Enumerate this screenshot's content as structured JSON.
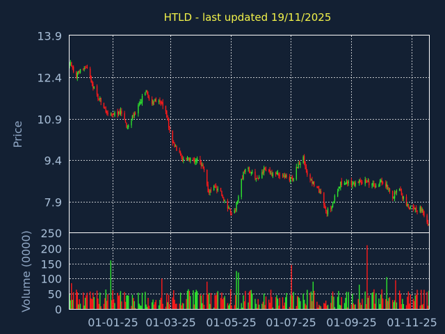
{
  "chart_data": [
    {
      "type": "candlestick",
      "title": "HTLD - last updated 19/11/2025",
      "ylabel": "Price",
      "ylim": [
        6.8,
        13.9
      ],
      "y_ticks": [
        "13.9",
        "12.4",
        "10.9",
        "9.4",
        "7.9"
      ],
      "x_ticks": [
        "01-01-25",
        "01-03-25",
        "01-05-25",
        "01-07-25",
        "01-09-25",
        "01-11-25"
      ],
      "grid": true,
      "colors": {
        "up": "#2ee62e",
        "down": "#ff1a1a"
      },
      "series": [
        {
          "keypoints": [
            [
              "2024-11-20",
              12.85
            ],
            [
              "2024-11-23",
              12.35
            ],
            [
              "2024-11-27",
              12.55
            ],
            [
              "2024-12-02",
              12.7
            ],
            [
              "2024-12-06",
              12.75
            ],
            [
              "2024-12-10",
              12.3
            ],
            [
              "2024-12-15",
              11.8
            ],
            [
              "2024-12-20",
              11.5
            ],
            [
              "2024-12-26",
              11.1
            ],
            [
              "2025-01-03",
              11.05
            ],
            [
              "2025-01-10",
              11.15
            ],
            [
              "2025-01-15",
              10.6
            ],
            [
              "2025-01-20",
              10.9
            ],
            [
              "2025-01-27",
              11.3
            ],
            [
              "2025-02-03",
              11.9
            ],
            [
              "2025-02-10",
              11.5
            ],
            [
              "2025-02-17",
              11.55
            ],
            [
              "2025-02-24",
              11.2
            ],
            [
              "2025-03-01",
              10.2
            ],
            [
              "2025-03-06",
              9.9
            ],
            [
              "2025-03-13",
              9.4
            ],
            [
              "2025-03-20",
              9.45
            ],
            [
              "2025-03-31",
              9.35
            ],
            [
              "2025-04-05",
              8.9
            ],
            [
              "2025-04-08",
              8.3
            ],
            [
              "2025-04-15",
              8.4
            ],
            [
              "2025-04-22",
              8.2
            ],
            [
              "2025-04-28",
              7.7
            ],
            [
              "2025-05-02",
              7.4
            ],
            [
              "2025-05-06",
              7.65
            ],
            [
              "2025-05-12",
              8.7
            ],
            [
              "2025-05-16",
              9.1
            ],
            [
              "2025-05-22",
              9.0
            ],
            [
              "2025-05-28",
              8.75
            ],
            [
              "2025-06-04",
              9.05
            ],
            [
              "2025-06-11",
              8.9
            ],
            [
              "2025-06-18",
              8.95
            ],
            [
              "2025-06-26",
              8.8
            ],
            [
              "2025-07-03",
              8.7
            ],
            [
              "2025-07-08",
              9.2
            ],
            [
              "2025-07-14",
              9.45
            ],
            [
              "2025-07-18",
              8.9
            ],
            [
              "2025-07-24",
              8.6
            ],
            [
              "2025-07-31",
              8.25
            ],
            [
              "2025-08-06",
              7.55
            ],
            [
              "2025-08-11",
              7.6
            ],
            [
              "2025-08-16",
              8.2
            ],
            [
              "2025-08-21",
              8.6
            ],
            [
              "2025-08-27",
              8.6
            ],
            [
              "2025-09-04",
              8.55
            ],
            [
              "2025-09-11",
              8.65
            ],
            [
              "2025-09-18",
              8.6
            ],
            [
              "2025-09-25",
              8.5
            ],
            [
              "2025-10-01",
              8.6
            ],
            [
              "2025-10-08",
              8.45
            ],
            [
              "2025-10-13",
              8.05
            ],
            [
              "2025-10-18",
              8.45
            ],
            [
              "2025-10-23",
              8.1
            ],
            [
              "2025-10-28",
              7.75
            ],
            [
              "2025-11-04",
              7.6
            ],
            [
              "2025-11-12",
              7.65
            ],
            [
              "2025-11-19",
              7.05
            ]
          ]
        }
      ]
    },
    {
      "type": "bar",
      "ylabel": "Volume (0000)",
      "ylim": [
        0,
        250
      ],
      "y_ticks": [
        "250",
        "200",
        "150",
        "100",
        "50",
        "0"
      ],
      "grid": true,
      "typical_range": [
        10,
        65
      ],
      "spikes": [
        [
          "2024-11-20",
          85
        ],
        [
          "2024-12-30",
          160
        ],
        [
          "2025-02-20",
          100
        ],
        [
          "2025-04-07",
          90
        ],
        [
          "2025-05-01",
          65
        ],
        [
          "2025-05-07",
          125
        ],
        [
          "2025-05-09",
          120
        ],
        [
          "2025-07-02",
          145
        ],
        [
          "2025-07-24",
          90
        ],
        [
          "2025-08-16",
          100
        ],
        [
          "2025-09-09",
          80
        ],
        [
          "2025-09-17",
          210
        ],
        [
          "2025-10-07",
          105
        ],
        [
          "2025-10-16",
          95
        ]
      ]
    }
  ]
}
